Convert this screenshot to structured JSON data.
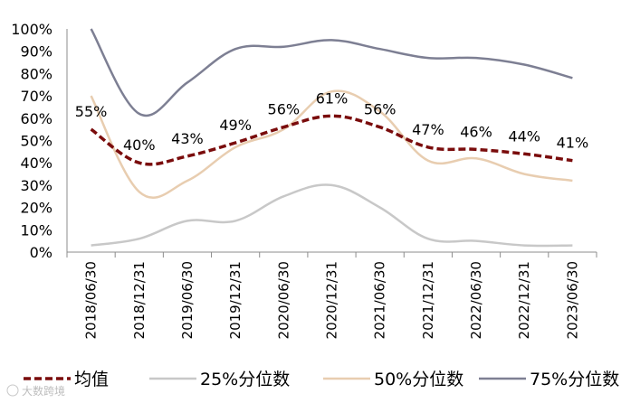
{
  "chart_data": {
    "type": "line",
    "categories": [
      "2018/06/30",
      "2018/12/31",
      "2019/06/30",
      "2019/12/31",
      "2020/06/30",
      "2020/12/31",
      "2021/06/30",
      "2021/12/31",
      "2022/06/30",
      "2022/12/31",
      "2023/06/30"
    ],
    "yticks": [
      "0%",
      "10%",
      "20%",
      "30%",
      "40%",
      "50%",
      "60%",
      "70%",
      "80%",
      "90%",
      "100%"
    ],
    "ylim": [
      0,
      100
    ],
    "series": [
      {
        "name": "均值",
        "key": "mean",
        "color": "#7a0c0c",
        "dashed": true,
        "values": [
          55,
          40,
          43,
          49,
          56,
          61,
          56,
          47,
          46,
          44,
          41
        ],
        "labels": [
          "55%",
          "40%",
          "43%",
          "49%",
          "56%",
          "61%",
          "56%",
          "47%",
          "46%",
          "44%",
          "41%"
        ]
      },
      {
        "name": "25%分位数",
        "key": "p25",
        "color": "#c8c8c8",
        "dashed": false,
        "values": [
          3,
          6,
          14,
          14,
          25,
          30,
          20,
          6,
          5,
          3,
          3
        ]
      },
      {
        "name": "50%分位数",
        "key": "p50",
        "color": "#e8cdb0",
        "dashed": false,
        "values": [
          70,
          27,
          32,
          47,
          55,
          72,
          63,
          41,
          42,
          35,
          32
        ]
      },
      {
        "name": "75%分位数",
        "key": "p75",
        "color": "#7d7f93",
        "dashed": false,
        "values": [
          100,
          62,
          76,
          91,
          92,
          95,
          91,
          87,
          87,
          84,
          78
        ]
      }
    ]
  },
  "watermark": "大数跨境"
}
